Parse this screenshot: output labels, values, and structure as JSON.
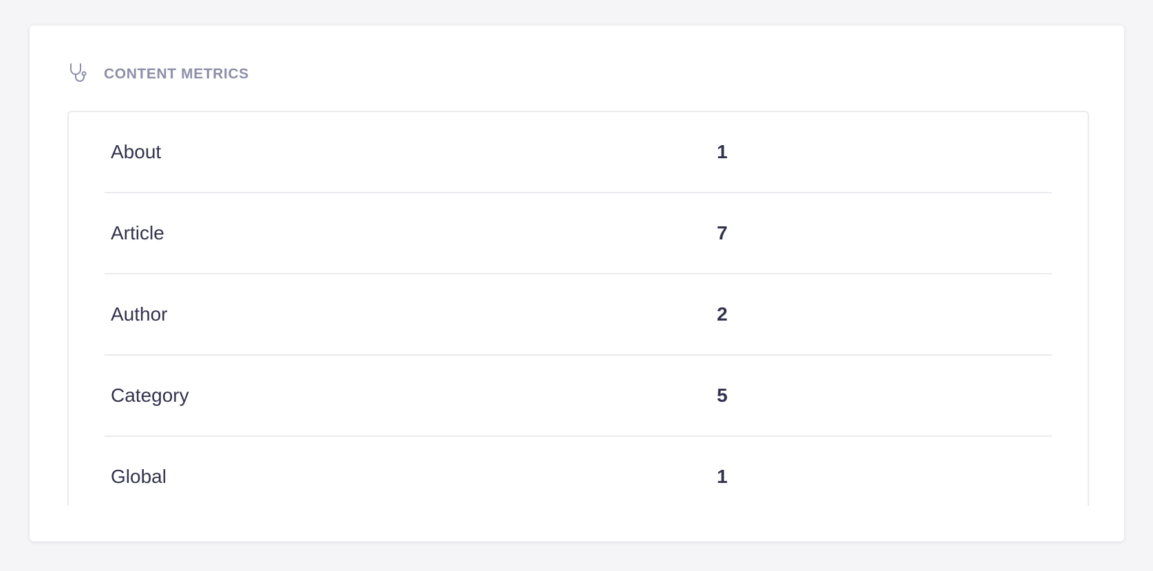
{
  "panel": {
    "title": "CONTENT METRICS",
    "icon": "stethoscope-icon",
    "rows": [
      {
        "label": "About",
        "value": "1"
      },
      {
        "label": "Article",
        "value": "7"
      },
      {
        "label": "Author",
        "value": "2"
      },
      {
        "label": "Category",
        "value": "5"
      },
      {
        "label": "Global",
        "value": "1"
      }
    ]
  }
}
